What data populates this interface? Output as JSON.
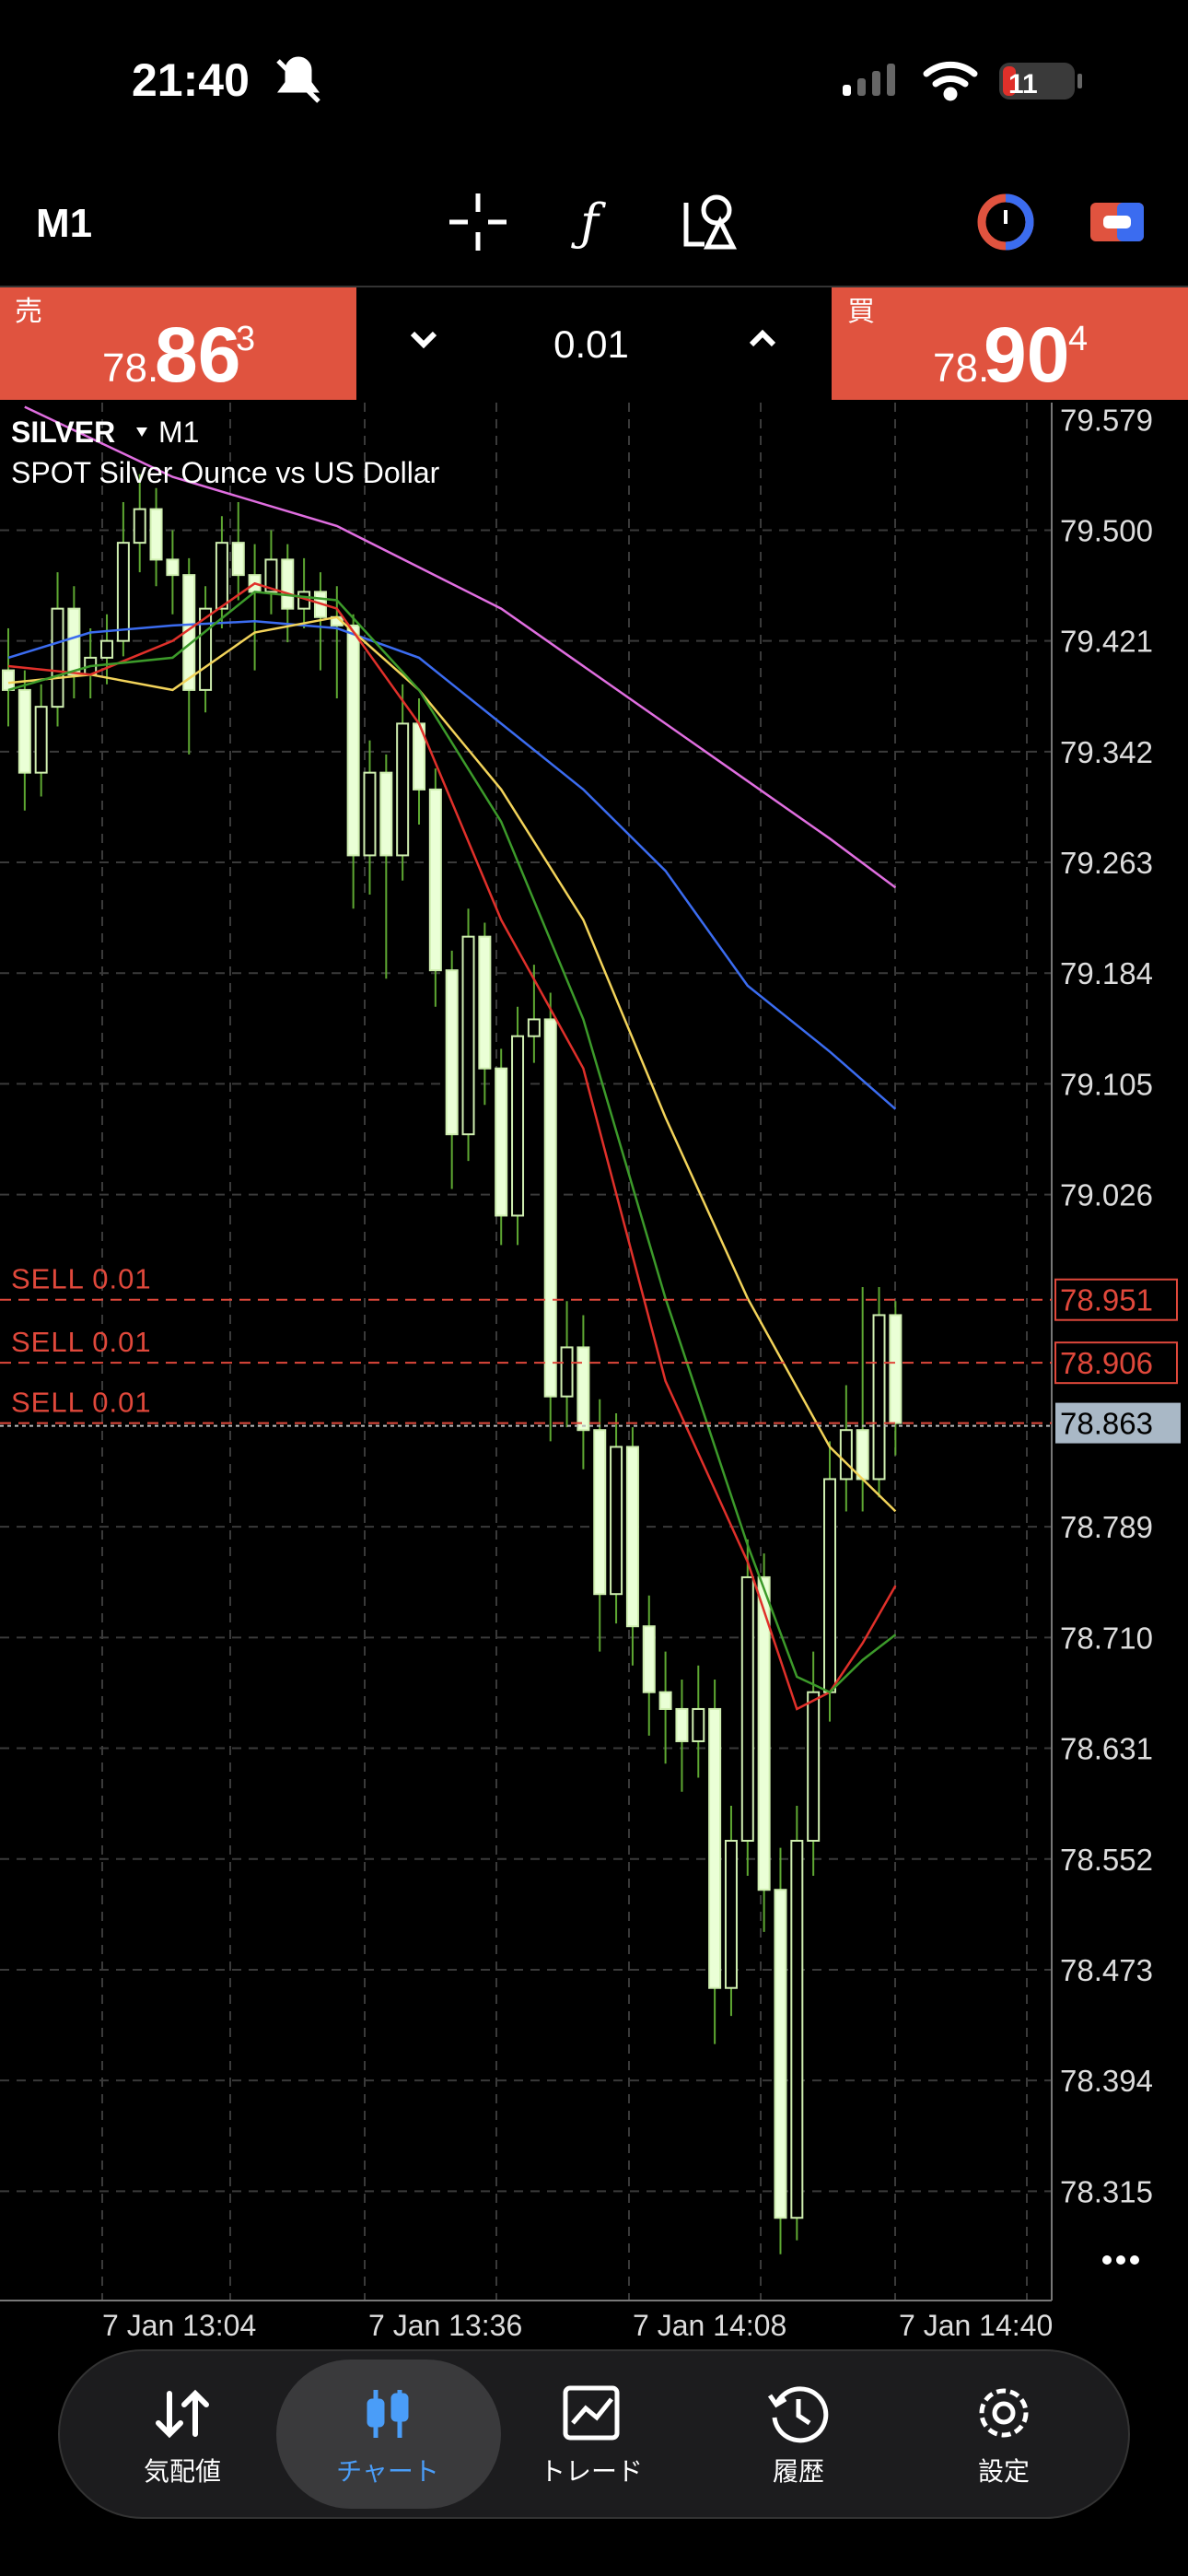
{
  "status_bar": {
    "time": "21:40",
    "battery": "11"
  },
  "toolbar": {
    "timeframe": "M1"
  },
  "quote": {
    "sell_label": "売",
    "sell_price": {
      "main": "78.",
      "big": "86",
      "small": "3"
    },
    "volume": "0.01",
    "buy_label": "買",
    "buy_price": {
      "main": "78.",
      "big": "90",
      "small": "4"
    }
  },
  "chart": {
    "symbol": "SILVER",
    "timeframe": "M1",
    "description": "SPOT Silver Ounce vs US Dollar",
    "ylim": [
      78.237,
      79.591
    ],
    "yticks": [
      {
        "value": 79.579,
        "label": "79.579"
      },
      {
        "value": 79.5,
        "label": "79.500"
      },
      {
        "value": 79.421,
        "label": "79.421"
      },
      {
        "value": 79.342,
        "label": "79.342"
      },
      {
        "value": 79.263,
        "label": "79.263"
      },
      {
        "value": 79.184,
        "label": "79.184"
      },
      {
        "value": 79.105,
        "label": "79.105"
      },
      {
        "value": 79.026,
        "label": "79.026"
      },
      {
        "value": 78.789,
        "label": "78.789"
      },
      {
        "value": 78.71,
        "label": "78.710"
      },
      {
        "value": 78.631,
        "label": "78.631"
      },
      {
        "value": 78.552,
        "label": "78.552"
      },
      {
        "value": 78.473,
        "label": "78.473"
      },
      {
        "value": 78.394,
        "label": "78.394"
      },
      {
        "value": 78.315,
        "label": "78.315"
      }
    ],
    "x_labels": [
      "7 Jan 13:04",
      "7 Jan 13:36",
      "7 Jan 14:08",
      "7 Jan 14:40"
    ],
    "candles": [
      [
        79.4,
        79.43,
        79.36,
        79.386
      ],
      [
        79.386,
        79.4,
        79.3,
        79.327
      ],
      [
        79.327,
        79.39,
        79.31,
        79.374
      ],
      [
        79.374,
        79.47,
        79.36,
        79.444
      ],
      [
        79.444,
        79.46,
        79.38,
        79.397
      ],
      [
        79.397,
        79.43,
        79.38,
        79.409
      ],
      [
        79.409,
        79.44,
        79.39,
        79.421
      ],
      [
        79.421,
        79.52,
        79.41,
        79.491
      ],
      [
        79.491,
        79.54,
        79.47,
        79.515
      ],
      [
        79.515,
        79.53,
        79.46,
        79.479
      ],
      [
        79.479,
        79.5,
        79.44,
        79.468
      ],
      [
        79.468,
        79.48,
        79.34,
        79.386
      ],
      [
        79.386,
        79.46,
        79.37,
        79.444
      ],
      [
        79.444,
        79.51,
        79.43,
        79.491
      ],
      [
        79.491,
        79.52,
        79.45,
        79.468
      ],
      [
        79.468,
        79.49,
        79.4,
        79.456
      ],
      [
        79.456,
        79.5,
        79.44,
        79.479
      ],
      [
        79.479,
        79.49,
        79.42,
        79.444
      ],
      [
        79.444,
        79.48,
        79.43,
        79.456
      ],
      [
        79.456,
        79.47,
        79.4,
        79.438
      ],
      [
        79.438,
        79.46,
        79.38,
        79.432
      ],
      [
        79.432,
        79.44,
        79.23,
        79.268
      ],
      [
        79.268,
        79.35,
        79.24,
        79.327
      ],
      [
        79.327,
        79.34,
        79.18,
        79.268
      ],
      [
        79.268,
        79.39,
        79.25,
        79.362
      ],
      [
        79.362,
        79.38,
        79.29,
        79.315
      ],
      [
        79.315,
        79.33,
        79.16,
        79.186
      ],
      [
        79.186,
        79.2,
        79.03,
        79.069
      ],
      [
        79.069,
        79.23,
        79.05,
        79.21
      ],
      [
        79.21,
        79.22,
        79.09,
        79.116
      ],
      [
        79.116,
        79.13,
        78.99,
        79.011
      ],
      [
        79.011,
        79.16,
        78.99,
        79.139
      ],
      [
        79.139,
        79.19,
        79.12,
        79.151
      ],
      [
        79.151,
        79.17,
        78.85,
        78.882
      ],
      [
        78.882,
        78.95,
        78.86,
        78.917
      ],
      [
        78.917,
        78.94,
        78.83,
        78.858
      ],
      [
        78.858,
        78.88,
        78.7,
        78.741
      ],
      [
        78.741,
        78.87,
        78.72,
        78.846
      ],
      [
        78.846,
        78.86,
        78.69,
        78.718
      ],
      [
        78.718,
        78.74,
        78.64,
        78.671
      ],
      [
        78.671,
        78.7,
        78.62,
        78.659
      ],
      [
        78.659,
        78.68,
        78.6,
        78.636
      ],
      [
        78.636,
        78.69,
        78.61,
        78.659
      ],
      [
        78.659,
        78.68,
        78.42,
        78.46
      ],
      [
        78.46,
        78.59,
        78.44,
        78.565
      ],
      [
        78.565,
        78.78,
        78.54,
        78.753
      ],
      [
        78.753,
        78.77,
        78.5,
        78.53
      ],
      [
        78.53,
        78.56,
        78.27,
        78.296
      ],
      [
        78.296,
        78.59,
        78.28,
        78.565
      ],
      [
        78.565,
        78.7,
        78.54,
        78.671
      ],
      [
        78.671,
        78.85,
        78.65,
        78.823
      ],
      [
        78.823,
        78.89,
        78.8,
        78.858
      ],
      [
        78.858,
        78.96,
        78.8,
        78.823
      ],
      [
        78.823,
        78.96,
        78.81,
        78.94
      ],
      [
        78.94,
        78.95,
        78.84,
        78.863
      ]
    ],
    "moving_averages": [
      {
        "color": "#e06ee0",
        "index": [
          1,
          10,
          20,
          30,
          40,
          50,
          54
        ],
        "values": [
          79.588,
          79.538,
          79.503,
          79.444,
          79.362,
          79.28,
          79.245
        ]
      },
      {
        "color": "#3b6cf0",
        "index": [
          0,
          5,
          10,
          15,
          20,
          25,
          30,
          35,
          40,
          45,
          50,
          54
        ],
        "values": [
          79.409,
          79.427,
          79.432,
          79.435,
          79.43,
          79.409,
          79.362,
          79.315,
          79.257,
          79.175,
          79.128,
          79.087
        ]
      },
      {
        "color": "#f2d35a",
        "index": [
          0,
          5,
          10,
          15,
          20,
          25,
          30,
          35,
          40,
          45,
          50,
          54
        ],
        "values": [
          79.391,
          79.397,
          79.386,
          79.427,
          79.438,
          79.386,
          79.315,
          79.222,
          79.081,
          78.952,
          78.846,
          78.8
        ]
      },
      {
        "color": "#e0302a",
        "index": [
          0,
          5,
          10,
          15,
          20,
          25,
          30,
          35,
          40,
          45,
          48,
          50,
          52,
          54
        ],
        "values": [
          79.403,
          79.397,
          79.421,
          79.462,
          79.444,
          79.362,
          79.222,
          79.116,
          78.893,
          78.764,
          78.659,
          78.671,
          78.706,
          78.747
        ]
      },
      {
        "color": "#3c9a2a",
        "index": [
          0,
          5,
          10,
          15,
          20,
          25,
          30,
          35,
          40,
          45,
          48,
          50,
          52,
          54
        ],
        "values": [
          79.386,
          79.403,
          79.409,
          79.456,
          79.45,
          79.386,
          79.292,
          79.151,
          78.952,
          78.776,
          78.682,
          78.671,
          78.694,
          78.712
        ]
      }
    ],
    "orders": [
      {
        "label": "SELL 0.01",
        "price": {
          "value": 78.951,
          "label": "78.951"
        }
      },
      {
        "label": "SELL 0.01",
        "price": {
          "value": 78.906,
          "label": "78.906"
        }
      },
      {
        "label": "SELL 0.01",
        "price": {
          "value": 78.863,
          "label": "78.863"
        }
      }
    ],
    "current_price": {
      "value": 78.863,
      "label": "78.863"
    }
  },
  "nav": [
    {
      "label": "気配値"
    },
    {
      "label": "チャート"
    },
    {
      "label": "トレード"
    },
    {
      "label": "履歴"
    },
    {
      "label": "設定"
    }
  ]
}
